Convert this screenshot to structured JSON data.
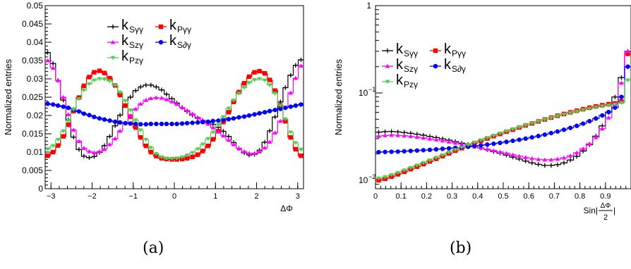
{
  "captions": {
    "a": "(a)",
    "b": "(b)"
  },
  "colors": {
    "S_gg": "#000000",
    "P_gg": "#ff0000",
    "Sz_g": "#ff00ff",
    "Sd_g": "#0000ff",
    "Pz_g": "#55cc55"
  },
  "chart_data": [
    {
      "type": "line",
      "panel": "(a)",
      "xlabel": "ΔΦ",
      "ylabel": "Normalized entries",
      "xlim": [
        -3.1416,
        3.1416
      ],
      "ylim": [
        0,
        0.05
      ],
      "xticks": [
        -3,
        -2,
        -1,
        0,
        1,
        2,
        3
      ],
      "xtick_labels": [
        "−3",
        "−2",
        "−1",
        "0",
        "1",
        "2",
        "3"
      ],
      "yticks": [
        0,
        0.005,
        0.01,
        0.015,
        0.02,
        0.025,
        0.03,
        0.035,
        0.04,
        0.045,
        0.05
      ],
      "ytick_labels": [
        "0",
        "0.005",
        "0.01",
        "0.015",
        "0.02",
        "0.025",
        "0.03",
        "0.035",
        "0.04",
        "0.045",
        "0.05"
      ],
      "legend": [
        {
          "sub": "Sγγ",
          "key": "S_gg",
          "marker": "plus"
        },
        {
          "sub": "Pγγ",
          "key": "P_gg",
          "marker": "square"
        },
        {
          "sub": "Szγ",
          "key": "Sz_g",
          "marker": "triangle-up"
        },
        {
          "sub": "S∂γ",
          "key": "Sd_g",
          "marker": "circle"
        },
        {
          "sub": "Pzγ",
          "key": "Pz_g",
          "marker": "triangle-down"
        }
      ],
      "x": [
        -3.08,
        -2.95,
        -2.83,
        -2.7,
        -2.58,
        -2.45,
        -2.32,
        -2.2,
        -2.07,
        -1.95,
        -1.82,
        -1.7,
        -1.57,
        -1.44,
        -1.32,
        -1.19,
        -1.07,
        -0.94,
        -0.82,
        -0.69,
        -0.57,
        -0.44,
        -0.31,
        -0.19,
        -0.06,
        0.06,
        0.19,
        0.31,
        0.44,
        0.57,
        0.69,
        0.82,
        0.94,
        1.07,
        1.19,
        1.32,
        1.44,
        1.57,
        1.7,
        1.82,
        1.95,
        2.07,
        2.2,
        2.32,
        2.45,
        2.58,
        2.7,
        2.83,
        2.95,
        3.08
      ],
      "series": [
        {
          "name": "Sγγ",
          "key": "S_gg",
          "marker": "plus",
          "values": [
            0.0372,
            0.0342,
            0.0296,
            0.0242,
            0.0188,
            0.0141,
            0.0107,
            0.0089,
            0.0085,
            0.0088,
            0.0099,
            0.0118,
            0.0143,
            0.0172,
            0.0201,
            0.0227,
            0.025,
            0.0268,
            0.0278,
            0.0283,
            0.0283,
            0.0278,
            0.027,
            0.0258,
            0.0246,
            0.0234,
            0.0222,
            0.0211,
            0.0201,
            0.0193,
            0.0187,
            0.0182,
            0.0176,
            0.0168,
            0.0157,
            0.0143,
            0.0126,
            0.011,
            0.0098,
            0.0092,
            0.0094,
            0.0105,
            0.0127,
            0.0158,
            0.0196,
            0.0237,
            0.0276,
            0.031,
            0.0337,
            0.0352
          ]
        },
        {
          "name": "Pγγ",
          "key": "P_gg",
          "marker": "square",
          "values": [
            0.009,
            0.01,
            0.0118,
            0.0143,
            0.0175,
            0.0212,
            0.0249,
            0.0281,
            0.0305,
            0.0318,
            0.0322,
            0.0316,
            0.0302,
            0.0282,
            0.0256,
            0.0227,
            0.0197,
            0.0167,
            0.014,
            0.0117,
            0.01,
            0.0089,
            0.0083,
            0.0081,
            0.008,
            0.008,
            0.0081,
            0.0083,
            0.0087,
            0.0093,
            0.0103,
            0.0117,
            0.0135,
            0.0157,
            0.0182,
            0.0209,
            0.0237,
            0.0264,
            0.0288,
            0.0306,
            0.0318,
            0.0321,
            0.0315,
            0.0297,
            0.0268,
            0.0228,
            0.0184,
            0.014,
            0.0108,
            0.009
          ]
        },
        {
          "name": "Szγ",
          "key": "Sz_g",
          "marker": "triangle-up",
          "values": [
            0.035,
            0.033,
            0.0296,
            0.025,
            0.0203,
            0.0161,
            0.013,
            0.0111,
            0.0102,
            0.0099,
            0.0102,
            0.0108,
            0.0121,
            0.0137,
            0.0158,
            0.0179,
            0.02,
            0.0218,
            0.0232,
            0.0242,
            0.0247,
            0.0249,
            0.0248,
            0.0244,
            0.0238,
            0.0231,
            0.0222,
            0.0214,
            0.0205,
            0.0195,
            0.0187,
            0.0177,
            0.0167,
            0.0156,
            0.0145,
            0.0133,
            0.0121,
            0.011,
            0.0102,
            0.0097,
            0.0097,
            0.0101,
            0.0112,
            0.0128,
            0.0153,
            0.0185,
            0.0222,
            0.0262,
            0.0302,
            0.0336
          ]
        },
        {
          "name": "S∂γ",
          "key": "Sd_g",
          "marker": "circle",
          "values": [
            0.0232,
            0.023,
            0.0227,
            0.0224,
            0.0221,
            0.0216,
            0.0211,
            0.0205,
            0.0201,
            0.0196,
            0.0192,
            0.0189,
            0.0186,
            0.0183,
            0.0181,
            0.0179,
            0.0178,
            0.0177,
            0.0176,
            0.0176,
            0.0177,
            0.0177,
            0.0177,
            0.0177,
            0.0177,
            0.0177,
            0.0178,
            0.0179,
            0.018,
            0.0181,
            0.0182,
            0.0183,
            0.0185,
            0.0186,
            0.0188,
            0.019,
            0.0192,
            0.0195,
            0.0197,
            0.02,
            0.0203,
            0.0206,
            0.0209,
            0.0212,
            0.0215,
            0.0218,
            0.0221,
            0.0224,
            0.0227,
            0.023
          ]
        },
        {
          "name": "Pzγ",
          "key": "Pz_g",
          "marker": "triangle-down",
          "values": [
            0.0108,
            0.0117,
            0.0134,
            0.0157,
            0.0186,
            0.0216,
            0.0245,
            0.0269,
            0.0286,
            0.0296,
            0.03,
            0.0299,
            0.0294,
            0.0282,
            0.0263,
            0.024,
            0.0214,
            0.0187,
            0.016,
            0.0134,
            0.0112,
            0.0095,
            0.0086,
            0.0082,
            0.0082,
            0.0083,
            0.0086,
            0.0091,
            0.0098,
            0.0108,
            0.0121,
            0.0136,
            0.0154,
            0.0174,
            0.0196,
            0.0219,
            0.0241,
            0.026,
            0.0276,
            0.0289,
            0.0297,
            0.03,
            0.0296,
            0.0283,
            0.026,
            0.0227,
            0.019,
            0.0154,
            0.0125,
            0.0107
          ]
        }
      ]
    },
    {
      "type": "line",
      "panel": "(b)",
      "xlabel": "Sin|ΔΦ/2|",
      "ylabel": "Normalized entries",
      "xlim": [
        0,
        1
      ],
      "ylim": [
        0.008,
        1
      ],
      "yscale": "log",
      "xticks": [
        0,
        0.1,
        0.2,
        0.3,
        0.4,
        0.5,
        0.6,
        0.7,
        0.8,
        0.9
      ],
      "xtick_labels": [
        "0",
        "0.1",
        "0.2",
        "0.3",
        "0.4",
        "0.5",
        "0.6",
        "0.7",
        "0.8",
        "0.9"
      ],
      "yticks": [
        0.01,
        0.1,
        1
      ],
      "ytick_labels": [
        "10⁻²",
        "10⁻¹",
        "1"
      ],
      "legend": [
        {
          "sub": "Sγγ",
          "key": "S_gg",
          "marker": "plus"
        },
        {
          "sub": "Pγγ",
          "key": "P_gg",
          "marker": "square"
        },
        {
          "sub": "Szγ",
          "key": "Sz_g",
          "marker": "triangle-up"
        },
        {
          "sub": "S∂γ",
          "key": "Sd_g",
          "marker": "circle"
        },
        {
          "sub": "Pzγ",
          "key": "Pz_g",
          "marker": "triangle-down"
        }
      ],
      "x": [
        0.0125,
        0.0375,
        0.0625,
        0.0875,
        0.1125,
        0.1375,
        0.1625,
        0.1875,
        0.2125,
        0.2375,
        0.2625,
        0.2875,
        0.3125,
        0.3375,
        0.3625,
        0.3875,
        0.4125,
        0.4375,
        0.4625,
        0.4875,
        0.5125,
        0.5375,
        0.5625,
        0.5875,
        0.6125,
        0.6375,
        0.6625,
        0.6875,
        0.7125,
        0.7375,
        0.7625,
        0.7875,
        0.8125,
        0.8375,
        0.8625,
        0.8875,
        0.9125,
        0.9375,
        0.9625,
        0.9875
      ],
      "series": [
        {
          "name": "Sγγ",
          "key": "S_gg",
          "marker": "plus",
          "values": [
            0.0355,
            0.036,
            0.0362,
            0.0358,
            0.0352,
            0.0345,
            0.0337,
            0.0328,
            0.0318,
            0.0308,
            0.0298,
            0.0288,
            0.0277,
            0.0266,
            0.0256,
            0.0246,
            0.0235,
            0.0225,
            0.0214,
            0.0204,
            0.0194,
            0.0184,
            0.0175,
            0.0166,
            0.0158,
            0.0152,
            0.0148,
            0.0148,
            0.0151,
            0.0158,
            0.017,
            0.0188,
            0.0216,
            0.0255,
            0.032,
            0.042,
            0.06,
            0.09,
            0.15,
            0.3
          ]
        },
        {
          "name": "Pγγ",
          "key": "P_gg",
          "marker": "square",
          "values": [
            0.01,
            0.0104,
            0.011,
            0.0117,
            0.0125,
            0.0134,
            0.0143,
            0.0153,
            0.0164,
            0.0176,
            0.0189,
            0.0203,
            0.0218,
            0.0233,
            0.0249,
            0.0266,
            0.0283,
            0.0301,
            0.032,
            0.0339,
            0.036,
            0.038,
            0.0402,
            0.0425,
            0.0448,
            0.0472,
            0.0497,
            0.0522,
            0.0548,
            0.0574,
            0.06,
            0.0626,
            0.0652,
            0.0678,
            0.0702,
            0.0724,
            0.0744,
            0.076,
            0.08,
            0.28
          ]
        },
        {
          "name": "Szγ",
          "key": "Sz_g",
          "marker": "triangle-up",
          "values": [
            0.032,
            0.0326,
            0.033,
            0.0328,
            0.0324,
            0.0319,
            0.0313,
            0.0306,
            0.0299,
            0.0292,
            0.0284,
            0.0276,
            0.0268,
            0.0259,
            0.0251,
            0.0243,
            0.0235,
            0.0227,
            0.0219,
            0.0211,
            0.0204,
            0.0196,
            0.0189,
            0.0183,
            0.0178,
            0.0174,
            0.0172,
            0.0172,
            0.0175,
            0.0181,
            0.0191,
            0.0207,
            0.023,
            0.0262,
            0.031,
            0.039,
            0.052,
            0.075,
            0.13,
            0.3
          ]
        },
        {
          "name": "S∂γ",
          "key": "Sd_g",
          "marker": "circle",
          "values": [
            0.021,
            0.0211,
            0.0212,
            0.0213,
            0.0215,
            0.0217,
            0.0219,
            0.0221,
            0.0223,
            0.0226,
            0.0229,
            0.0232,
            0.0235,
            0.0238,
            0.0242,
            0.0246,
            0.0251,
            0.0256,
            0.0262,
            0.0268,
            0.0275,
            0.0283,
            0.0291,
            0.03,
            0.031,
            0.0321,
            0.0333,
            0.0347,
            0.0362,
            0.0379,
            0.0398,
            0.042,
            0.0445,
            0.0475,
            0.051,
            0.0552,
            0.0605,
            0.068,
            0.09,
            0.2
          ]
        },
        {
          "name": "Pzγ",
          "key": "Pz_g",
          "marker": "triangle-down",
          "values": [
            0.0105,
            0.0109,
            0.0115,
            0.0122,
            0.013,
            0.0139,
            0.0148,
            0.0158,
            0.0169,
            0.0181,
            0.0194,
            0.0208,
            0.0223,
            0.0238,
            0.0254,
            0.0271,
            0.0288,
            0.0306,
            0.0325,
            0.0344,
            0.0364,
            0.0384,
            0.0405,
            0.0427,
            0.0449,
            0.0472,
            0.0495,
            0.0519,
            0.0543,
            0.0567,
            0.0591,
            0.0615,
            0.0639,
            0.0662,
            0.0684,
            0.0705,
            0.0722,
            0.0735,
            0.077,
            0.14
          ]
        }
      ]
    }
  ]
}
